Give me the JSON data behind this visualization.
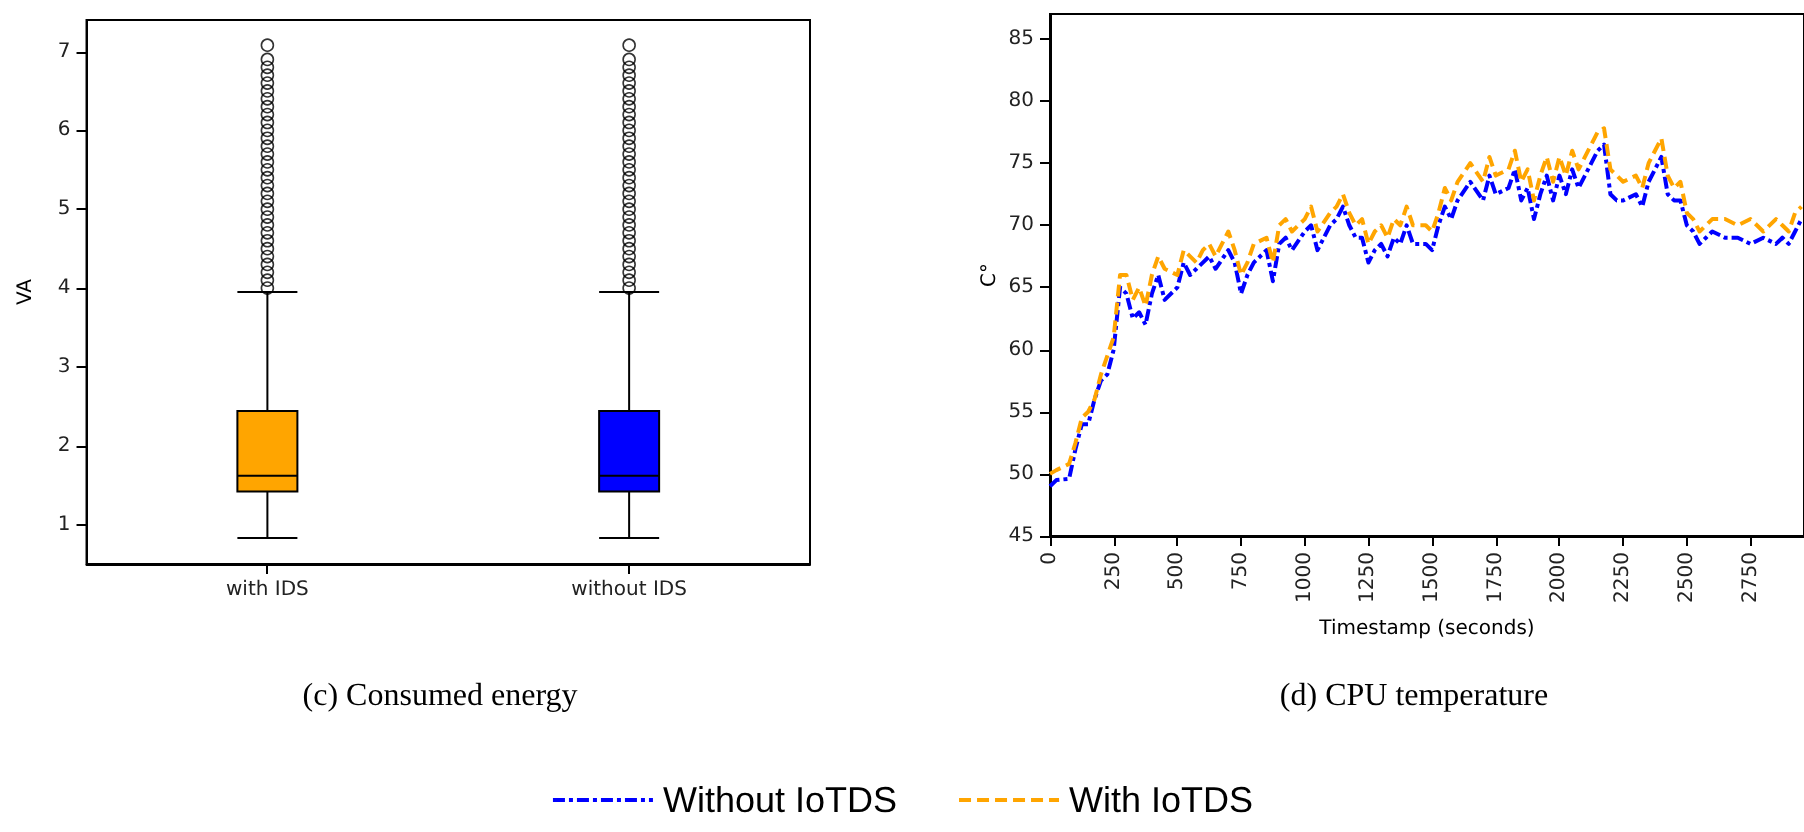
{
  "chart_data": [
    {
      "type": "box",
      "title": "(c) Consumed energy",
      "ylabel": "VA",
      "categories": [
        "with IDS",
        "without IDS"
      ],
      "colors": [
        "#ffa500",
        "#0000ff"
      ],
      "boxes": [
        {
          "low": 0.83,
          "q1": 1.42,
          "median": 1.62,
          "q3": 2.44,
          "high": 3.95,
          "outliers": [
            4.0,
            4.1,
            4.2,
            4.3,
            4.4,
            4.5,
            4.6,
            4.7,
            4.8,
            4.9,
            5.0,
            5.1,
            5.2,
            5.3,
            5.4,
            5.5,
            5.6,
            5.7,
            5.8,
            5.9,
            6.0,
            6.1,
            6.2,
            6.3,
            6.4,
            6.5,
            6.6,
            6.7,
            6.8,
            6.9,
            7.08
          ]
        },
        {
          "low": 0.83,
          "q1": 1.42,
          "median": 1.62,
          "q3": 2.44,
          "high": 3.95,
          "outliers": [
            4.0,
            4.1,
            4.2,
            4.3,
            4.4,
            4.5,
            4.6,
            4.7,
            4.8,
            4.9,
            5.0,
            5.1,
            5.2,
            5.3,
            5.4,
            5.5,
            5.6,
            5.7,
            5.8,
            5.9,
            6.0,
            6.1,
            6.2,
            6.3,
            6.4,
            6.5,
            6.6,
            6.7,
            6.8,
            6.9,
            7.08
          ]
        }
      ],
      "ylim": [
        0.5,
        7.4
      ],
      "yticks": [
        1,
        2,
        3,
        4,
        5,
        6,
        7
      ],
      "grid": false
    },
    {
      "type": "line",
      "title": "(d) CPU temperature",
      "xlabel": "Timestamp (seconds)",
      "ylabel": "C°",
      "x": [
        0,
        25,
        75,
        100,
        125,
        150,
        175,
        200,
        225,
        250,
        275,
        300,
        325,
        350,
        375,
        400,
        425,
        450,
        500,
        525,
        550,
        575,
        600,
        625,
        650,
        700,
        725,
        750,
        775,
        800,
        850,
        875,
        900,
        925,
        950,
        1000,
        1025,
        1050,
        1100,
        1125,
        1150,
        1175,
        1200,
        1225,
        1250,
        1275,
        1300,
        1325,
        1350,
        1375,
        1400,
        1425,
        1475,
        1500,
        1525,
        1550,
        1575,
        1600,
        1650,
        1700,
        1725,
        1750,
        1800,
        1825,
        1850,
        1875,
        1900,
        1925,
        1950,
        1975,
        2000,
        2025,
        2050,
        2075,
        2100,
        2125,
        2150,
        2175,
        2200,
        2225,
        2250,
        2300,
        2325,
        2350,
        2375,
        2400,
        2425,
        2450,
        2475,
        2500,
        2525,
        2550,
        2575,
        2600,
        2650,
        2700,
        2750,
        2800,
        2850,
        2875,
        2900,
        2925,
        2950
      ],
      "series": [
        {
          "name": "Without IoTDS",
          "color": "#0000ff",
          "line_style": "dashdot",
          "values": [
            49,
            49.5,
            49.6,
            52,
            54,
            54,
            56,
            57.5,
            58,
            60,
            65,
            64.5,
            62.5,
            63,
            62,
            64.5,
            66,
            64,
            65,
            67,
            66,
            66.5,
            67,
            67.5,
            66.5,
            68,
            67,
            64.5,
            66,
            67,
            68,
            65.5,
            68.5,
            69,
            68,
            69.5,
            70,
            68,
            70,
            70.5,
            71.5,
            70,
            69,
            69,
            67,
            68,
            68.5,
            67.5,
            69,
            68.5,
            70,
            68.5,
            68.5,
            68,
            70,
            71.5,
            70.5,
            72,
            73.5,
            72,
            74,
            72.5,
            73,
            74.5,
            72,
            73,
            70.5,
            72.5,
            74,
            72,
            74,
            72.5,
            74.5,
            73,
            74,
            75,
            76,
            76.5,
            72.5,
            72,
            72,
            72.5,
            71.5,
            73.5,
            74.5,
            75.5,
            72.5,
            72,
            72,
            70,
            69.5,
            68.5,
            69,
            69.5,
            69,
            69,
            68.5,
            69,
            68.5,
            69,
            68.5,
            69.5,
            70.5
          ]
        },
        {
          "name": "With IoTDS",
          "color": "#ffa500",
          "line_style": "dashed",
          "values": [
            50,
            50.3,
            50.8,
            52.5,
            54.5,
            55,
            56,
            58,
            59.5,
            61,
            66,
            66,
            64,
            65,
            63.5,
            66,
            67.5,
            66.5,
            66,
            68,
            67.5,
            67,
            68,
            68.5,
            67.5,
            69.5,
            68,
            66,
            67,
            68.5,
            69,
            67,
            70,
            70.5,
            69.5,
            70.5,
            71.5,
            69.5,
            71,
            71.5,
            72.5,
            71,
            70,
            70.5,
            68.5,
            69.5,
            70,
            69,
            70.5,
            70,
            71.5,
            70,
            70,
            69.5,
            71,
            73,
            72,
            73.5,
            75,
            73.5,
            75.5,
            74,
            74.5,
            76,
            73.5,
            74.5,
            72,
            74,
            75.5,
            73.5,
            75.5,
            74,
            76,
            74.5,
            75.5,
            76.5,
            77.5,
            77.8,
            74.5,
            74,
            73.5,
            74,
            73,
            75,
            76,
            77,
            74,
            73,
            73.5,
            71,
            70.5,
            69.5,
            70,
            70.5,
            70.5,
            70,
            70.5,
            69.5,
            70.5,
            70,
            69.5,
            71,
            71.5
          ]
        }
      ],
      "xlim": [
        0,
        2960
      ],
      "xticks": [
        0,
        250,
        500,
        750,
        1000,
        1250,
        1500,
        1750,
        2000,
        2250,
        2500,
        2750
      ],
      "ylim": [
        45,
        87
      ],
      "yticks": [
        45,
        50,
        55,
        60,
        65,
        70,
        75,
        80,
        85
      ],
      "grid": false,
      "marker": "none",
      "legend": "bottom"
    }
  ]
}
